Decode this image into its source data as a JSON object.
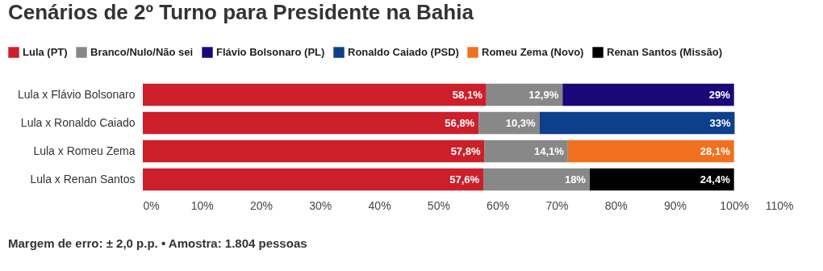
{
  "chart_data": {
    "type": "bar",
    "orientation": "horizontal",
    "stacked": true,
    "title": "Cenários de 2º Turno para Presidente na Bahia",
    "categories": [
      "Lula x Flávio Bolsonaro",
      "Lula x Ronaldo Caiado",
      "Lula x Romeu Zema",
      "Lula x Renan Santos"
    ],
    "series": [
      {
        "name": "Lula (PT)",
        "color": "#cc1f2a",
        "values": [
          58.1,
          56.8,
          57.8,
          57.6
        ],
        "value_labels": [
          "58,1%",
          "56,8%",
          "57,8%",
          "57,6%"
        ]
      },
      {
        "name": "Branco/Nulo/Não sei",
        "color": "#888888",
        "values": [
          12.9,
          10.3,
          14.1,
          18
        ],
        "value_labels": [
          "12,9%",
          "10,3%",
          "14,1%",
          "18%"
        ]
      },
      {
        "name": "Flávio Bolsonaro (PL)",
        "color": "#1b0878",
        "values": [
          29,
          null,
          null,
          null
        ],
        "value_labels": [
          "29%",
          null,
          null,
          null
        ]
      },
      {
        "name": "Ronaldo Caiado (PSD)",
        "color": "#0c3f8c",
        "values": [
          null,
          33,
          null,
          null
        ],
        "value_labels": [
          null,
          "33%",
          null,
          null
        ]
      },
      {
        "name": "Romeu Zema (Novo)",
        "color": "#f07020",
        "values": [
          null,
          null,
          28.1,
          null
        ],
        "value_labels": [
          null,
          null,
          "28,1%",
          null
        ]
      },
      {
        "name": "Renan Santos (Missão)",
        "color": "#000000",
        "values": [
          null,
          null,
          null,
          24.4
        ],
        "value_labels": [
          null,
          null,
          null,
          "24,4%"
        ]
      }
    ],
    "xlim": [
      0,
      110
    ],
    "xticks": [
      {
        "value": 0,
        "label": "0%"
      },
      {
        "value": 10,
        "label": "10%"
      },
      {
        "value": 20,
        "label": "20%"
      },
      {
        "value": 30,
        "label": "30%"
      },
      {
        "value": 40,
        "label": "40%"
      },
      {
        "value": 50,
        "label": "50%"
      },
      {
        "value": 60,
        "label": "60%"
      },
      {
        "value": 70,
        "label": "70%"
      },
      {
        "value": 80,
        "label": "80%"
      },
      {
        "value": 90,
        "label": "90%"
      },
      {
        "value": 100,
        "label": "100%"
      },
      {
        "value": 110,
        "label": "110%"
      }
    ],
    "grid": false,
    "legend": "top left",
    "annotations": [
      "Margem de erro: ± 2,0 p.p. • Amostra: 1.804 pessoas"
    ]
  }
}
